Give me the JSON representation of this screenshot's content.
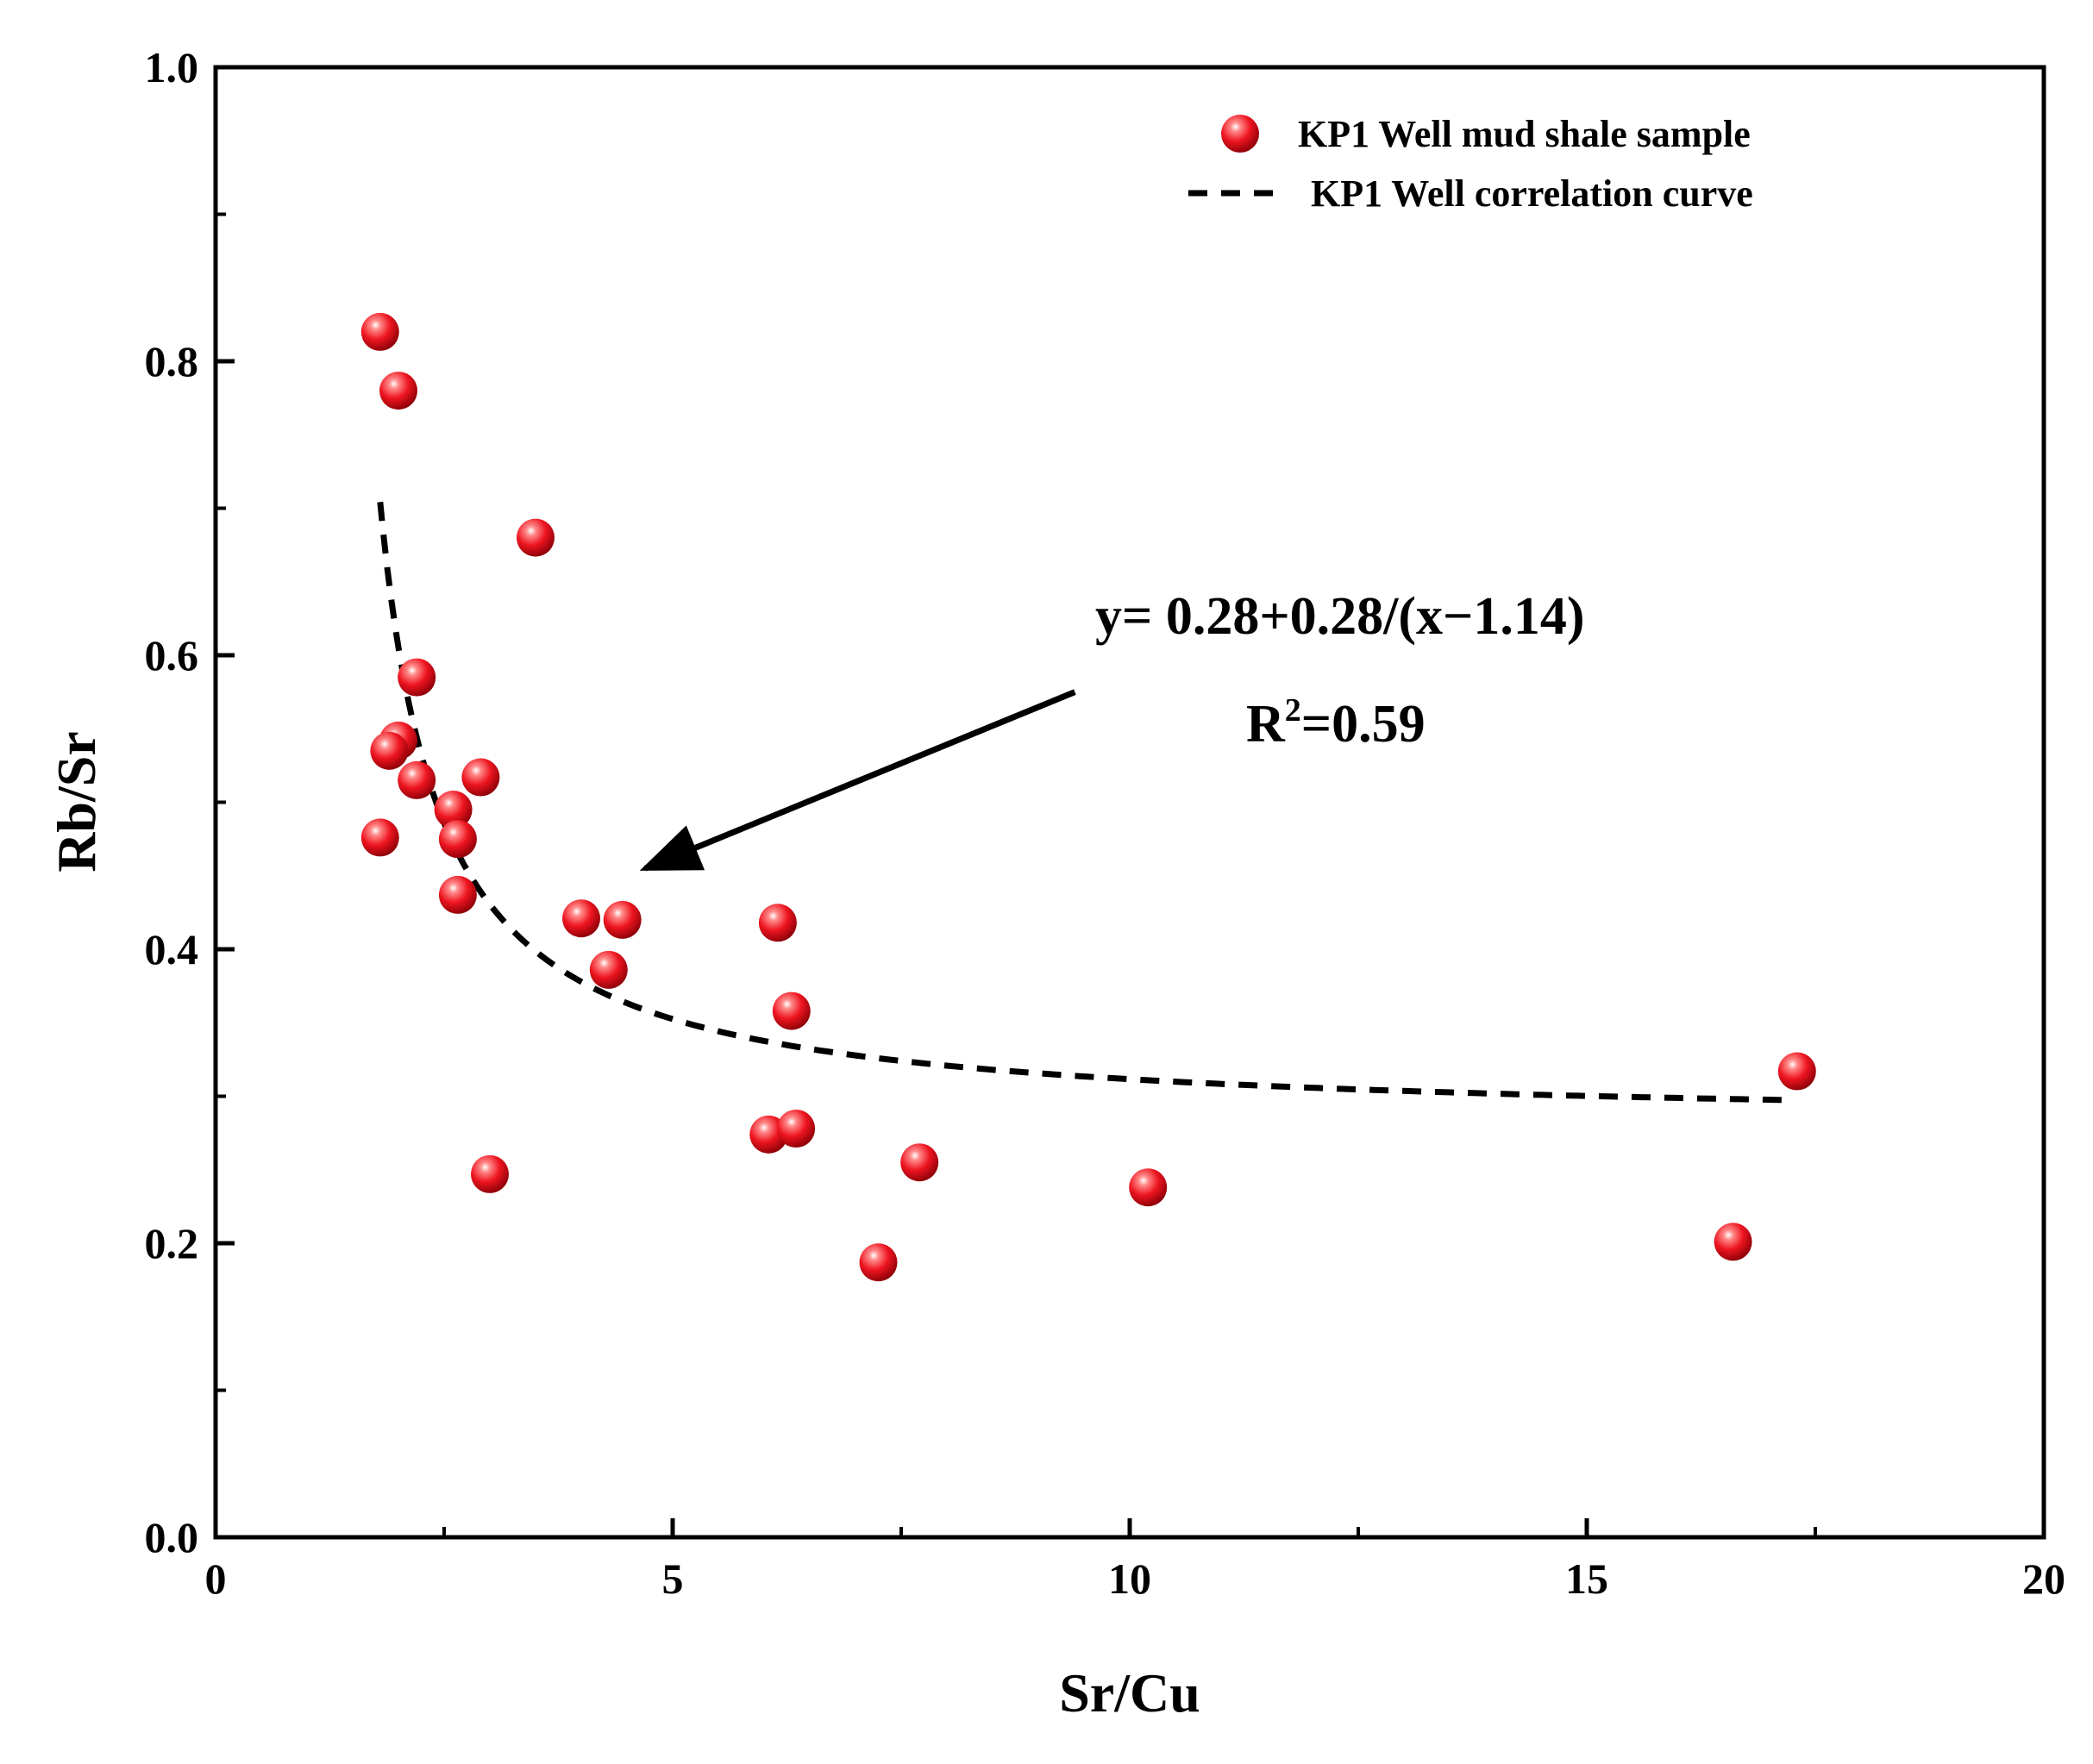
{
  "chart_data": {
    "type": "scatter",
    "title": "",
    "xlabel": "Sr/Cu",
    "ylabel": "Rb/Sr",
    "xlim": [
      0,
      20
    ],
    "ylim": [
      0,
      1.0
    ],
    "xticks": [
      0,
      5,
      10,
      15,
      20
    ],
    "xtick_labels": [
      "0",
      "5",
      "10",
      "15",
      "20"
    ],
    "yticks": [
      0.0,
      0.2,
      0.4,
      0.6,
      0.8,
      1.0
    ],
    "ytick_labels": [
      "0.0",
      "0.2",
      "0.4",
      "0.6",
      "0.8",
      "1.0"
    ],
    "grid": false,
    "legend_position": "top-right",
    "series": [
      {
        "name": "KP1 Well mud shale sample",
        "kind": "scatter",
        "color": "#e8101a",
        "points": [
          {
            "x": 1.8,
            "y": 0.82
          },
          {
            "x": 2.0,
            "y": 0.78
          },
          {
            "x": 3.5,
            "y": 0.68
          },
          {
            "x": 2.2,
            "y": 0.585
          },
          {
            "x": 2.0,
            "y": 0.542
          },
          {
            "x": 1.9,
            "y": 0.535
          },
          {
            "x": 2.2,
            "y": 0.515
          },
          {
            "x": 2.9,
            "y": 0.517
          },
          {
            "x": 2.6,
            "y": 0.495
          },
          {
            "x": 1.8,
            "y": 0.476
          },
          {
            "x": 2.65,
            "y": 0.475
          },
          {
            "x": 2.65,
            "y": 0.437
          },
          {
            "x": 4.0,
            "y": 0.421
          },
          {
            "x": 4.45,
            "y": 0.42
          },
          {
            "x": 6.15,
            "y": 0.418
          },
          {
            "x": 4.3,
            "y": 0.386
          },
          {
            "x": 6.3,
            "y": 0.358
          },
          {
            "x": 6.05,
            "y": 0.274
          },
          {
            "x": 6.35,
            "y": 0.278
          },
          {
            "x": 7.7,
            "y": 0.255
          },
          {
            "x": 3.0,
            "y": 0.247
          },
          {
            "x": 10.2,
            "y": 0.238
          },
          {
            "x": 7.25,
            "y": 0.187
          },
          {
            "x": 16.6,
            "y": 0.201
          },
          {
            "x": 17.3,
            "y": 0.317
          }
        ]
      },
      {
        "name": "KP1 Well correlation curve",
        "kind": "line",
        "style": "dashed",
        "color": "#000000",
        "equation": {
          "a": 0.28,
          "b": 0.28,
          "c": 1.14
        },
        "x_range": [
          1.8,
          17.2
        ]
      }
    ],
    "annotations": {
      "equation_text": "y= 0.28+0.28/(x−1.14)",
      "r2_prefix": "R",
      "r2_sup": "2",
      "r2_value": "=0.59",
      "arrow_from": {
        "x": 9.4,
        "y": 0.575
      },
      "arrow_to": {
        "x": 4.7,
        "y": 0.455
      }
    }
  }
}
